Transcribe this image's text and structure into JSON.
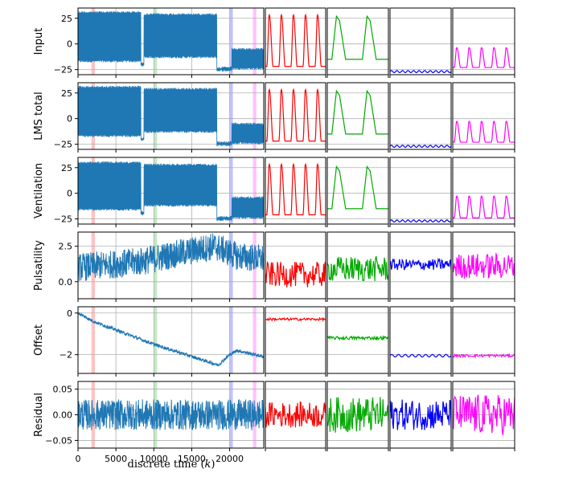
{
  "chart_data": {
    "type": "line",
    "xlabel": "discrete time (k)",
    "xlabel_parts": {
      "text": "discrete time (",
      "var": "k",
      "close": ")"
    },
    "xlim": [
      0,
      24500
    ],
    "xticks": [
      0,
      5000,
      10000,
      15000,
      20000
    ],
    "xtick_labels": [
      "0",
      "5000",
      "10000",
      "15000",
      "20000"
    ],
    "grid": true,
    "main_color": "#1f77b4",
    "highlight_bands": [
      {
        "color": "#ff9999",
        "center": 2000,
        "width": 450
      },
      {
        "color": "#99dd99",
        "center": 10200,
        "width": 450
      },
      {
        "color": "#9999ff",
        "center": 20200,
        "width": 450
      },
      {
        "color": "#ff99ff",
        "center": 23300,
        "width": 450
      }
    ],
    "zoom_colors": [
      "#ff0000",
      "#00aa00",
      "#0000ff",
      "#ff00ff"
    ],
    "rows": [
      {
        "ylabel": "Input",
        "ylim": [
          -30,
          35
        ],
        "yticks": [
          -25,
          0,
          25
        ],
        "ytick_labels": [
          "−25",
          "0",
          "25"
        ],
        "main": {
          "kind": "pulse",
          "segments": [
            {
              "x0": 0,
              "x1": 8300,
              "low": -18,
              "high": 32
            },
            {
              "x0": 8300,
              "x1": 8700,
              "low": -22,
              "high": -18
            },
            {
              "x0": 8700,
              "x1": 18300,
              "low": -14,
              "high": 30
            },
            {
              "x0": 18300,
              "x1": 20300,
              "low": -27,
              "high": -22
            },
            {
              "x0": 20300,
              "x1": 24500,
              "low": -25,
              "high": -4
            }
          ]
        },
        "zooms": [
          {
            "kind": "pulse",
            "base": -22,
            "peak": 30,
            "cycles": 5
          },
          {
            "kind": "pulse",
            "base": -15,
            "peak": 27,
            "cycles": 2
          },
          {
            "kind": "wave",
            "base": -27,
            "amp": 1,
            "cycles": 11
          },
          {
            "kind": "pulse",
            "base": -23,
            "peak": -3,
            "cycles": 5
          }
        ]
      },
      {
        "ylabel": "LMS total",
        "ylim": [
          -30,
          35
        ],
        "yticks": [
          -25,
          0,
          25
        ],
        "ytick_labels": [
          "−25",
          "0",
          "25"
        ],
        "main": {
          "kind": "pulse",
          "segments": [
            {
              "x0": 0,
              "x1": 8300,
              "low": -18,
              "high": 32
            },
            {
              "x0": 8300,
              "x1": 8700,
              "low": -22,
              "high": -18
            },
            {
              "x0": 8700,
              "x1": 18300,
              "low": -14,
              "high": 30
            },
            {
              "x0": 18300,
              "x1": 20300,
              "low": -27,
              "high": -22
            },
            {
              "x0": 20300,
              "x1": 24500,
              "low": -25,
              "high": -4
            }
          ]
        },
        "zooms": [
          {
            "kind": "pulse",
            "base": -22,
            "peak": 30,
            "cycles": 5
          },
          {
            "kind": "pulse",
            "base": -15,
            "peak": 27,
            "cycles": 2
          },
          {
            "kind": "wave",
            "base": -27,
            "amp": 1,
            "cycles": 11
          },
          {
            "kind": "pulse",
            "base": -23,
            "peak": -2,
            "cycles": 5
          }
        ]
      },
      {
        "ylabel": "Ventilation",
        "ylim": [
          -30,
          35
        ],
        "yticks": [
          -25,
          0,
          25
        ],
        "ytick_labels": [
          "−25",
          "0",
          "25"
        ],
        "main": {
          "kind": "pulse",
          "segments": [
            {
              "x0": 0,
              "x1": 8300,
              "low": -17,
              "high": 31
            },
            {
              "x0": 8300,
              "x1": 8700,
              "low": -22,
              "high": -17
            },
            {
              "x0": 8700,
              "x1": 18300,
              "low": -13,
              "high": 29
            },
            {
              "x0": 18300,
              "x1": 20300,
              "low": -27,
              "high": -22
            },
            {
              "x0": 20300,
              "x1": 24500,
              "low": -25,
              "high": -3
            }
          ]
        },
        "zooms": [
          {
            "kind": "pulse",
            "base": -21,
            "peak": 30,
            "cycles": 5
          },
          {
            "kind": "pulse",
            "base": -15,
            "peak": 26,
            "cycles": 2
          },
          {
            "kind": "wave",
            "base": -27,
            "amp": 1,
            "cycles": 11
          },
          {
            "kind": "pulse",
            "base": -24,
            "peak": -2,
            "cycles": 5
          }
        ]
      },
      {
        "ylabel": "Pulsatility",
        "ylim": [
          -1.2,
          3.5
        ],
        "yticks": [
          0,
          2.5
        ],
        "ytick_labels": [
          "0.0",
          "2.5"
        ],
        "main": {
          "kind": "noisy",
          "trend": [
            [
              0,
              1.0
            ],
            [
              8000,
              1.4
            ],
            [
              18000,
              2.5
            ],
            [
              21000,
              1.8
            ],
            [
              24500,
              1.6
            ]
          ],
          "amp": 1.0
        },
        "zooms": [
          {
            "kind": "noisy",
            "base": 0.5,
            "amp": 0.9
          },
          {
            "kind": "noisy",
            "base": 0.9,
            "amp": 0.9
          },
          {
            "kind": "noisy",
            "base": 1.2,
            "amp": 0.4
          },
          {
            "kind": "noisy",
            "base": 1.1,
            "amp": 0.9
          }
        ]
      },
      {
        "ylabel": "Offset",
        "ylim": [
          -2.9,
          0.3
        ],
        "yticks": [
          -2,
          0
        ],
        "ytick_labels": [
          "−2",
          "0"
        ],
        "main": {
          "kind": "noisy",
          "trend": [
            [
              0,
              0
            ],
            [
              2000,
              -0.4
            ],
            [
              10000,
              -1.5
            ],
            [
              18500,
              -2.5
            ],
            [
              20000,
              -2.0
            ],
            [
              21000,
              -1.8
            ],
            [
              24500,
              -2.1
            ]
          ],
          "amp": 0.08
        },
        "zooms": [
          {
            "kind": "noisy",
            "base": -0.3,
            "amp": 0.06
          },
          {
            "kind": "noisy",
            "base": -1.2,
            "amp": 0.08
          },
          {
            "kind": "wave",
            "base": -2.05,
            "amp": 0.06,
            "cycles": 9
          },
          {
            "kind": "noisy",
            "base": -2.05,
            "amp": 0.06
          }
        ]
      },
      {
        "ylabel": "Residual",
        "ylim": [
          -0.065,
          0.065
        ],
        "yticks": [
          -0.05,
          0,
          0.05
        ],
        "ytick_labels": [
          "−0.05",
          "0.00",
          "0.05"
        ],
        "main": {
          "kind": "noisy",
          "trend": [
            [
              0,
              0
            ],
            [
              24500,
              0
            ]
          ],
          "amp": 0.03
        },
        "zooms": [
          {
            "kind": "noisy",
            "base": 0,
            "amp": 0.025
          },
          {
            "kind": "noisy",
            "base": 0,
            "amp": 0.035
          },
          {
            "kind": "noisy",
            "base": 0,
            "amp": 0.03
          },
          {
            "kind": "noisy",
            "base": 0,
            "amp": 0.04
          }
        ]
      }
    ]
  }
}
